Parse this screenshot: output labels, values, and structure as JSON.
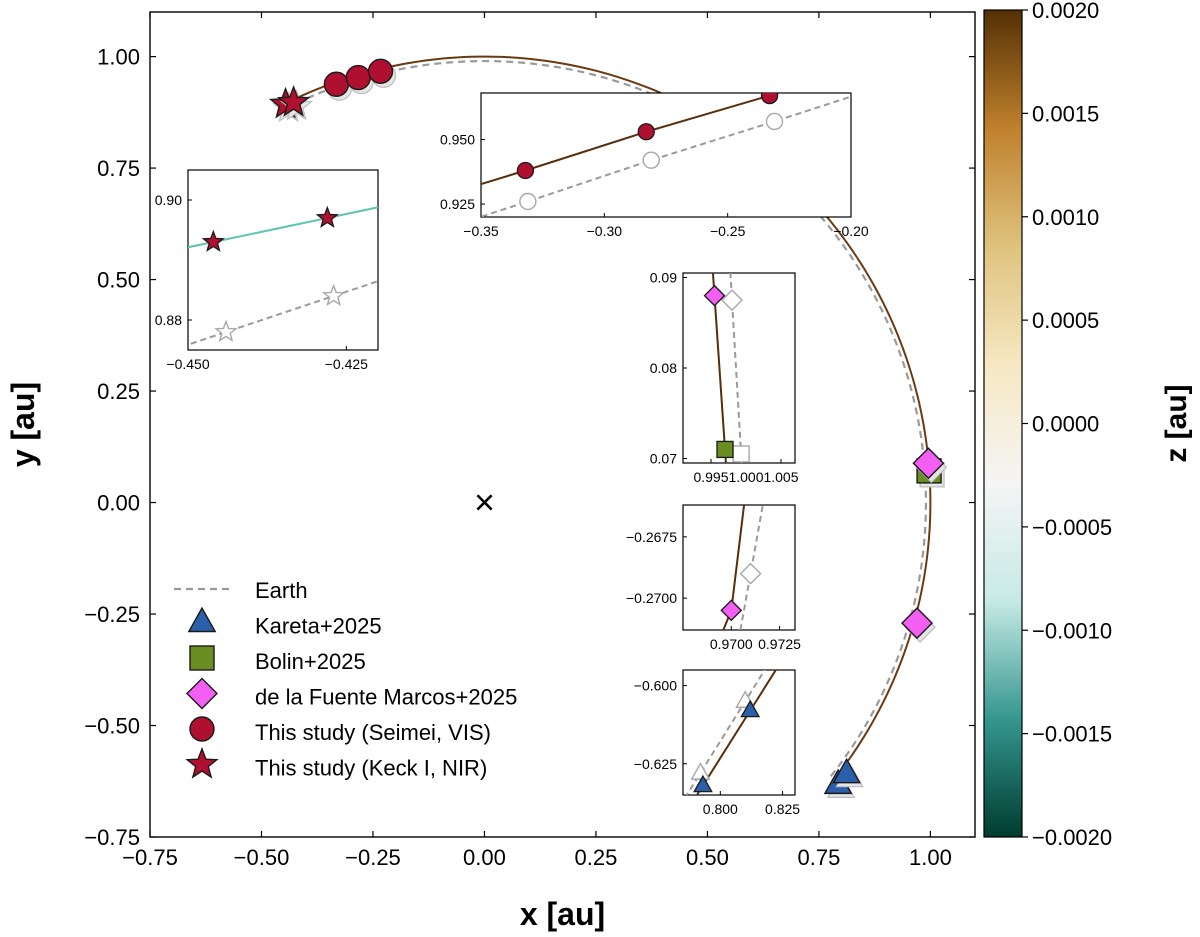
{
  "chart_data": {
    "type": "scatter",
    "xlabel": "x [au]",
    "ylabel": "y [au]",
    "xlim": [
      -0.75,
      1.1
    ],
    "ylim": [
      -0.75,
      1.1
    ],
    "xticks": [
      "−0.75",
      "−0.50",
      "−0.25",
      "0.00",
      "0.25",
      "0.50",
      "0.75",
      "1.00"
    ],
    "xtick_values": [
      -0.75,
      -0.5,
      -0.25,
      0.0,
      0.25,
      0.5,
      0.75,
      1.0
    ],
    "yticks": [
      "−0.75",
      "−0.50",
      "−0.25",
      "0.00",
      "0.25",
      "0.50",
      "0.75",
      "1.00"
    ],
    "ytick_values": [
      -0.75,
      -0.5,
      -0.25,
      0.0,
      0.25,
      0.5,
      0.75,
      1.0
    ],
    "sun_marker": {
      "x": 0.0,
      "y": 0.0,
      "symbol": "×"
    },
    "colorbar": {
      "label": "z [au]",
      "range": [
        -0.002,
        0.002
      ],
      "ticks": [
        "0.0020",
        "0.0015",
        "0.0010",
        "0.0005",
        "0.0000",
        "−0.0005",
        "−0.0010",
        "−0.0015",
        "−0.0020"
      ],
      "tick_values": [
        0.002,
        0.0015,
        0.001,
        0.0005,
        0.0,
        -0.0005,
        -0.001,
        -0.0015,
        -0.002
      ],
      "colors": [
        "#003c30",
        "#35978f",
        "#c7eae5",
        "#f5f5f5",
        "#f6e8c3",
        "#dfc27d",
        "#bf812d",
        "#543005"
      ]
    },
    "legend": {
      "placement": "lower-left",
      "entries": [
        {
          "label": "Earth",
          "marker": "dashed-line",
          "color": "#999999"
        },
        {
          "label": "Kareta+2025",
          "marker": "triangle",
          "color": "#2c5faa"
        },
        {
          "label": "Bolin+2025",
          "marker": "square",
          "color": "#6b8e23"
        },
        {
          "label": "de la Fuente Marcos+2025",
          "marker": "diamond",
          "color": "#f25ff2"
        },
        {
          "label": "This study (Seimei, VIS)",
          "marker": "circle",
          "color": "#b0102f"
        },
        {
          "label": "This study (Keck I, NIR)",
          "marker": "star",
          "color": "#b0102f"
        }
      ]
    },
    "series": [
      {
        "name": "Earth",
        "x": [
          -0.445,
          -0.33,
          -0.28,
          -0.23,
          0.0,
          0.5,
          0.8,
          0.98,
          1.0,
          0.97,
          0.8
        ],
        "y": [
          0.88,
          0.926,
          0.942,
          0.957,
          1.0,
          0.86,
          0.6,
          0.2,
          0.07,
          -0.27,
          -0.63
        ]
      },
      {
        "name": "Kareta+2025",
        "x": [
          0.793,
          0.812
        ],
        "y": [
          -0.632,
          -0.608
        ]
      },
      {
        "name": "Bolin+2025",
        "x": [
          0.997
        ],
        "y": [
          0.071
        ]
      },
      {
        "name": "de la Fuente Marcos+2025",
        "x": [
          0.9955,
          0.97
        ],
        "y": [
          0.088,
          -0.2705
        ]
      },
      {
        "name": "This study (Seimei, VIS)",
        "x": [
          -0.332,
          -0.283,
          -0.233
        ],
        "y": [
          0.938,
          0.953,
          0.967
        ]
      },
      {
        "name": "This study (Keck I, NIR)",
        "x": [
          -0.446,
          -0.428
        ],
        "y": [
          0.893,
          0.897
        ]
      }
    ],
    "insets": [
      {
        "xlim": [
          -0.45,
          -0.42
        ],
        "ylim": [
          0.875,
          0.905
        ],
        "xticks": [
          "−0.450",
          "−0.425"
        ],
        "xtick_values": [
          -0.45,
          -0.425
        ],
        "yticks": [
          "0.90",
          "0.88"
        ],
        "ytick_values": [
          0.9,
          0.88
        ],
        "observed": {
          "marker": "star",
          "x": [
            -0.446,
            -0.428
          ],
          "y": [
            0.893,
            0.897
          ]
        },
        "earth": {
          "x": [
            -0.444,
            -0.427
          ],
          "y": [
            0.878,
            0.884
          ]
        }
      },
      {
        "xlim": [
          -0.35,
          -0.2
        ],
        "ylim": [
          0.92,
          0.968
        ],
        "xticks": [
          "−0.35",
          "−0.30",
          "−0.25",
          "−0.20"
        ],
        "xtick_values": [
          -0.35,
          -0.3,
          -0.25,
          -0.2
        ],
        "yticks": [
          "0.950",
          "0.925"
        ],
        "ytick_values": [
          0.95,
          0.925
        ],
        "observed": {
          "marker": "circle",
          "x": [
            -0.332,
            -0.283,
            -0.233
          ],
          "y": [
            0.938,
            0.953,
            0.967
          ]
        },
        "earth": {
          "x": [
            -0.331,
            -0.281,
            -0.231
          ],
          "y": [
            0.926,
            0.942,
            0.957
          ]
        }
      },
      {
        "xlim": [
          0.991,
          1.007
        ],
        "ylim": [
          0.0695,
          0.0905
        ],
        "xticks": [
          "0.995",
          "1.000",
          "1.005"
        ],
        "xtick_values": [
          0.995,
          1.0,
          1.005
        ],
        "yticks": [
          "0.09",
          "0.08",
          "0.07"
        ],
        "ytick_values": [
          0.09,
          0.08,
          0.07
        ],
        "observed": {
          "marker": "diamond-square",
          "x": [
            0.9955,
            0.997
          ],
          "y": [
            0.088,
            0.071
          ]
        },
        "earth": {
          "x": [
            0.998,
            0.9993
          ],
          "y": [
            0.0875,
            0.0705
          ]
        }
      },
      {
        "xlim": [
          0.9675,
          0.9733
        ],
        "ylim": [
          -0.2713,
          -0.2662
        ],
        "xticks": [
          "0.9700",
          "0.9725"
        ],
        "xtick_values": [
          0.97,
          0.9725
        ],
        "yticks": [
          "−0.2675",
          "−0.2700"
        ],
        "ytick_values": [
          -0.2675,
          -0.27
        ],
        "observed": {
          "marker": "diamond",
          "x": [
            0.97
          ],
          "y": [
            -0.2705
          ]
        },
        "earth": {
          "x": [
            0.971
          ],
          "y": [
            -0.269
          ]
        }
      },
      {
        "xlim": [
          0.785,
          0.83
        ],
        "ylim": [
          -0.635,
          -0.595
        ],
        "xticks": [
          "0.800",
          "0.825"
        ],
        "xtick_values": [
          0.8,
          0.825
        ],
        "yticks": [
          "−0.600",
          "−0.625"
        ],
        "ytick_values": [
          -0.6,
          -0.625
        ],
        "observed": {
          "marker": "triangle",
          "x": [
            0.793,
            0.812
          ],
          "y": [
            -0.632,
            -0.608
          ]
        },
        "earth": {
          "x": [
            0.792,
            0.81
          ],
          "y": [
            -0.628,
            -0.605
          ]
        }
      }
    ]
  }
}
